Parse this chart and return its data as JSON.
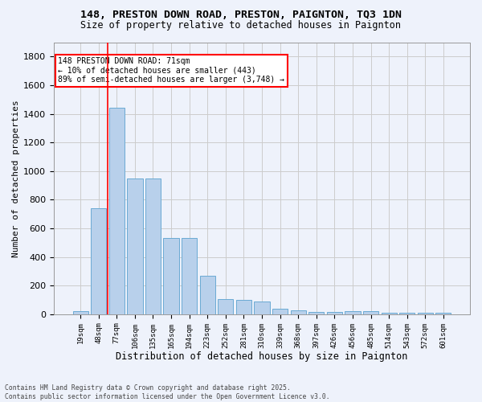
{
  "title_line1": "148, PRESTON DOWN ROAD, PRESTON, PAIGNTON, TQ3 1DN",
  "title_line2": "Size of property relative to detached houses in Paignton",
  "xlabel": "Distribution of detached houses by size in Paignton",
  "ylabel": "Number of detached properties",
  "categories": [
    "19sqm",
    "48sqm",
    "77sqm",
    "106sqm",
    "135sqm",
    "165sqm",
    "194sqm",
    "223sqm",
    "252sqm",
    "281sqm",
    "310sqm",
    "339sqm",
    "368sqm",
    "397sqm",
    "426sqm",
    "456sqm",
    "485sqm",
    "514sqm",
    "543sqm",
    "572sqm",
    "601sqm"
  ],
  "values": [
    20,
    743,
    1440,
    950,
    950,
    535,
    535,
    270,
    105,
    100,
    90,
    40,
    28,
    15,
    15,
    20,
    20,
    8,
    10,
    8,
    8
  ],
  "bar_color": "#b8d0eb",
  "bar_edge_color": "#6aaad4",
  "grid_color": "#cccccc",
  "background_color": "#eef2fb",
  "red_line_index": 1.5,
  "annotation_text": "148 PRESTON DOWN ROAD: 71sqm\n← 10% of detached houses are smaller (443)\n89% of semi-detached houses are larger (3,748) →",
  "ylim": [
    0,
    1900
  ],
  "yticks": [
    0,
    200,
    400,
    600,
    800,
    1000,
    1200,
    1400,
    1600,
    1800
  ],
  "footer_line1": "Contains HM Land Registry data © Crown copyright and database right 2025.",
  "footer_line2": "Contains public sector information licensed under the Open Government Licence v3.0."
}
